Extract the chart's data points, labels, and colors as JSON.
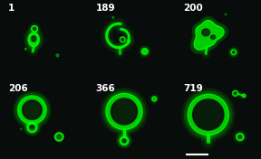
{
  "labels": [
    "1",
    "189",
    "200",
    "206",
    "366",
    "719"
  ],
  "background_color": "#080c0a",
  "label_color": "white",
  "cell_color": "#00ff00",
  "label_fontsize": 7.5,
  "figsize": [
    2.88,
    1.76
  ],
  "dpi": 100,
  "scale_bar_color": "white",
  "sep_color": "#303030"
}
